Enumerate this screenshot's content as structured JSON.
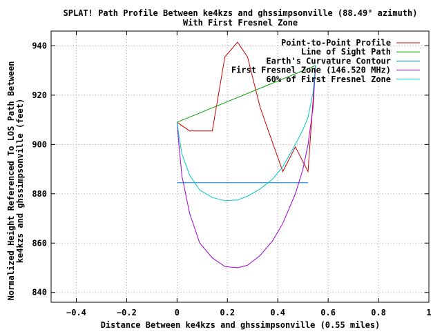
{
  "chart_data": {
    "type": "line",
    "title": "SPLAT! Path Profile Between ke4kzs and ghssimpsonville (88.49° azimuth)",
    "subtitle": "With First Fresnel Zone",
    "xlabel": "Distance Between ke4kzs and ghssimpsonville (0.55 miles)",
    "ylabel_lines": [
      "Normalized Height Referenced To LOS Path Between",
      "ke4kzs and ghssimpsonville (feet)"
    ],
    "xlim": [
      -0.5,
      1.0
    ],
    "ylim": [
      836,
      946
    ],
    "x_ticks": [
      -0.4,
      -0.2,
      0,
      0.2,
      0.4,
      0.6,
      0.8,
      1
    ],
    "x_tick_labels": [
      "−0.4",
      "−0.2",
      "0",
      "0.2",
      "0.4",
      "0.6",
      "0.8",
      "1"
    ],
    "y_ticks": [
      840,
      860,
      880,
      900,
      920,
      940
    ],
    "y_tick_labels": [
      "840",
      "860",
      "880",
      "900",
      "920",
      "940"
    ],
    "grid": true,
    "legend_position": "top-right",
    "series": [
      {
        "name": "Point-to-Point Profile",
        "color": "#cc0000",
        "x": [
          0,
          0.05,
          0.1,
          0.14,
          0.19,
          0.24,
          0.28,
          0.33,
          0.42,
          0.47,
          0.52,
          0.55
        ],
        "y": [
          909,
          905.5,
          905.5,
          905.5,
          935.5,
          941.5,
          935.5,
          915,
          889,
          899,
          889,
          932
        ]
      },
      {
        "name": "Line of Sight Path",
        "color": "#00a000",
        "x": [
          0,
          0.55
        ],
        "y": [
          909,
          932
        ]
      },
      {
        "name": "Earth's Curvature Contour",
        "color": "#0080c0",
        "x": [
          0,
          0.52
        ],
        "y": [
          884.5,
          884.5
        ]
      },
      {
        "name": "First Fresnel Zone (146.520 MHz)",
        "color": "#a000d0",
        "x": [
          0,
          0.01,
          0.02,
          0.05,
          0.09,
          0.14,
          0.19,
          0.24,
          0.28,
          0.33,
          0.38,
          0.42,
          0.47,
          0.5,
          0.52,
          0.54,
          0.55
        ],
        "y": [
          909,
          897,
          887,
          872,
          860,
          854,
          850.5,
          850,
          851,
          855,
          861,
          868,
          880,
          890,
          900,
          915,
          932
        ]
      },
      {
        "name": "60% of First Fresnel Zone",
        "color": "#00c8c8",
        "x": [
          0,
          0.01,
          0.02,
          0.05,
          0.09,
          0.14,
          0.19,
          0.24,
          0.28,
          0.33,
          0.38,
          0.42,
          0.47,
          0.5,
          0.52,
          0.54,
          0.55
        ],
        "y": [
          909,
          902,
          896,
          887.5,
          881.5,
          878.5,
          877.2,
          877.5,
          879,
          882,
          886,
          891,
          900,
          906,
          911,
          921,
          932
        ]
      }
    ]
  }
}
